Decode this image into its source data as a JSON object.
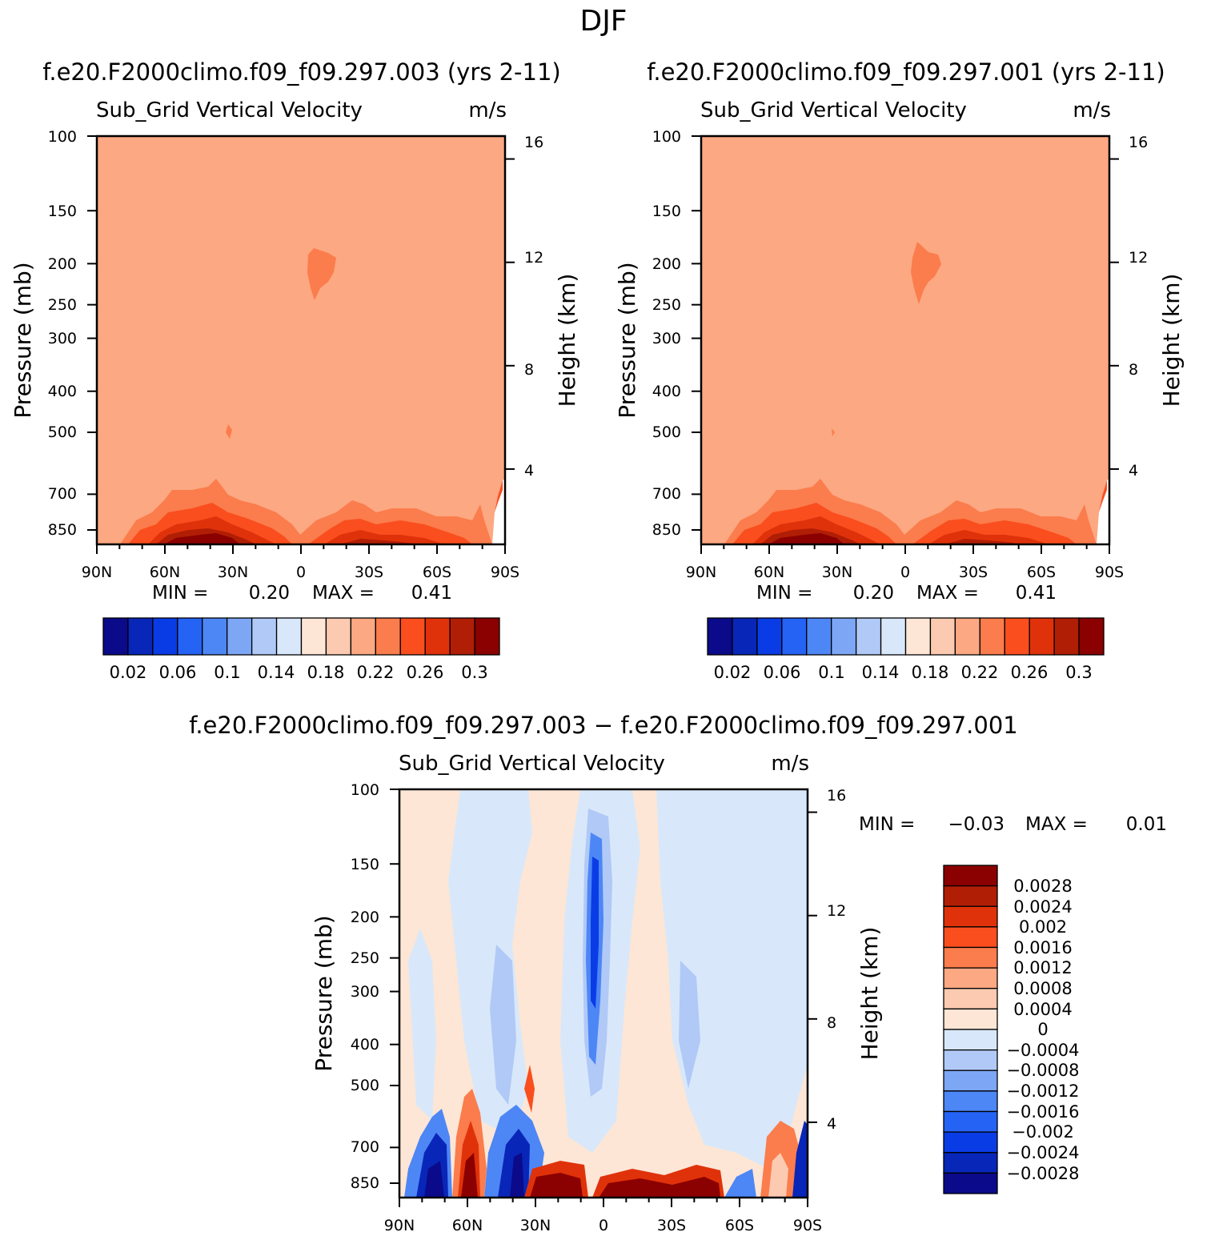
{
  "page": {
    "title": "DJF"
  },
  "colors": {
    "abs_scale": [
      "#0a0a8a",
      "#0826b8",
      "#0a3ce6",
      "#2563f5",
      "#4d86f5",
      "#7da7f5",
      "#b0c9f7",
      "#d8e8fa",
      "#fde6d6",
      "#fccab0",
      "#fca882",
      "#fb7c4c",
      "#fa4e1e",
      "#e0320a",
      "#b01e05",
      "#8b0000"
    ],
    "diff_scale": [
      "#0a0a8a",
      "#0826b8",
      "#0a3ce6",
      "#2563f5",
      "#4d86f5",
      "#7da7f5",
      "#b0c9f7",
      "#d8e8fa",
      "#fde6d6",
      "#fccab0",
      "#fca882",
      "#fb7c4c",
      "#fa4e1e",
      "#e0320a",
      "#b01e05",
      "#8b0000"
    ]
  },
  "chart_data": [
    {
      "type": "heatmap",
      "title": "f.e20.F2000climo.f09_f09.297.003 (yrs 2-11)",
      "subtitle": "Sub_Grid Vertical Velocity",
      "units": "m/s",
      "xlabel": "",
      "ylabel": "Pressure (mb)",
      "y2label": "Height (km)",
      "x_ticks": [
        "90N",
        "60N",
        "30N",
        "0",
        "30S",
        "60S",
        "90S"
      ],
      "y_ticks": [
        "100",
        "150",
        "200",
        "250",
        "300",
        "400",
        "500",
        "700",
        "850"
      ],
      "y2_ticks": [
        "16",
        "12",
        "8",
        "4"
      ],
      "min_label": "MIN =",
      "min_value": "0.20",
      "max_label": "MAX =",
      "max_value": "0.41",
      "colorbar_labels": [
        "0.02",
        "0.06",
        "0.1",
        "0.14",
        "0.18",
        "0.22",
        "0.26",
        "0.3"
      ],
      "background_level": 0.22
    },
    {
      "type": "heatmap",
      "title": "f.e20.F2000climo.f09_f09.297.001 (yrs 2-11)",
      "subtitle": "Sub_Grid Vertical Velocity",
      "units": "m/s",
      "xlabel": "",
      "ylabel": "Pressure (mb)",
      "y2label": "Height (km)",
      "x_ticks": [
        "90N",
        "60N",
        "30N",
        "0",
        "30S",
        "60S",
        "90S"
      ],
      "y_ticks": [
        "100",
        "150",
        "200",
        "250",
        "300",
        "400",
        "500",
        "700",
        "850"
      ],
      "y2_ticks": [
        "16",
        "12",
        "8",
        "4"
      ],
      "min_label": "MIN =",
      "min_value": "0.20",
      "max_label": "MAX =",
      "max_value": "0.41",
      "colorbar_labels": [
        "0.02",
        "0.06",
        "0.1",
        "0.14",
        "0.18",
        "0.22",
        "0.26",
        "0.3"
      ],
      "background_level": 0.22
    },
    {
      "type": "heatmap",
      "title": "f.e20.F2000climo.f09_f09.297.003 − f.e20.F2000climo.f09_f09.297.001",
      "subtitle": "Sub_Grid Vertical Velocity",
      "units": "m/s",
      "xlabel": "",
      "ylabel": "Pressure (mb)",
      "y2label": "Height (km)",
      "x_ticks": [
        "90N",
        "60N",
        "30N",
        "0",
        "30S",
        "60S",
        "90S"
      ],
      "y_ticks": [
        "100",
        "150",
        "200",
        "250",
        "300",
        "400",
        "500",
        "700",
        "850"
      ],
      "y2_ticks": [
        "16",
        "12",
        "8",
        "4"
      ],
      "min_label": "MIN =",
      "min_value": "−0.03",
      "max_label": "MAX =",
      "max_value": "0.01",
      "colorbar_labels": [
        "0.0028",
        "0.0024",
        "0.002",
        "0.0016",
        "0.0012",
        "0.0008",
        "0.0004",
        "0",
        "−0.0004",
        "−0.0008",
        "−0.0012",
        "−0.0016",
        "−0.002",
        "−0.0024",
        "−0.0028"
      ]
    }
  ]
}
